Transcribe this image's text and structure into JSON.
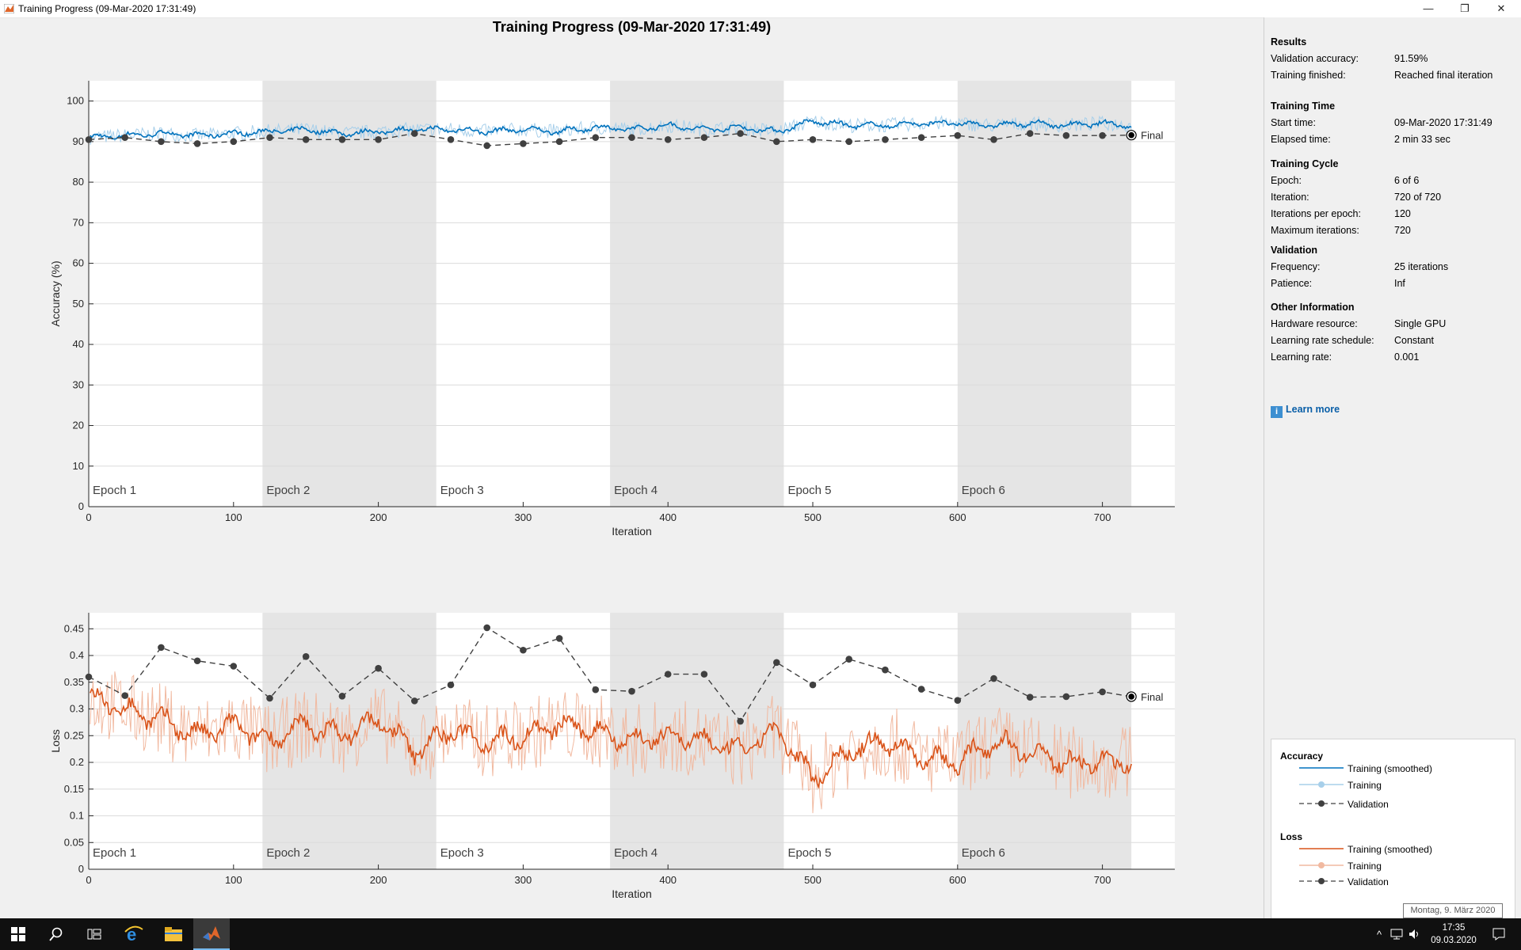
{
  "window": {
    "title": "Training Progress (09-Mar-2020 17:31:49)",
    "minimize": "—",
    "restore": "❐",
    "close": "✕"
  },
  "figure_title": "Training Progress (09-Mar-2020 17:31:49)",
  "colors": {
    "accuracy": "#0072bd",
    "accuracy_raw": "#a7cfea",
    "loss": "#d95319",
    "loss_raw": "#f1b9a0",
    "validation": "#404040",
    "epoch_shade": "#e5e5e5"
  },
  "epochs": [
    "Epoch 1",
    "Epoch 2",
    "Epoch 3",
    "Epoch 4",
    "Epoch 5",
    "Epoch 6"
  ],
  "final_label": "Final",
  "chart_data": [
    {
      "type": "line",
      "ylabel": "Accuracy (%)",
      "xlabel": "Iteration",
      "xlim": [
        0,
        750
      ],
      "ylim": [
        0,
        105
      ],
      "xticks": [
        0,
        100,
        200,
        300,
        400,
        500,
        600,
        700
      ],
      "yticks": [
        0,
        10,
        20,
        30,
        40,
        50,
        60,
        70,
        80,
        90,
        100
      ],
      "series": [
        {
          "name": "Training (smoothed)",
          "x": [
            0,
            25,
            50,
            75,
            100,
            125,
            150,
            175,
            200,
            225,
            250,
            275,
            300,
            325,
            350,
            375,
            400,
            425,
            450,
            475,
            500,
            525,
            550,
            575,
            600,
            625,
            650,
            675,
            700,
            720
          ],
          "values": [
            91,
            91.5,
            92,
            91.5,
            92,
            92.5,
            93,
            92,
            92.5,
            93,
            93,
            92.5,
            93,
            92.5,
            93.5,
            93,
            94,
            93,
            93.5,
            92.5,
            95,
            94,
            94,
            94.5,
            94.5,
            94,
            94.5,
            94,
            94.5,
            94
          ]
        },
        {
          "name": "Validation",
          "x": [
            0,
            25,
            50,
            75,
            100,
            125,
            150,
            175,
            200,
            225,
            250,
            275,
            300,
            325,
            350,
            375,
            400,
            425,
            450,
            475,
            500,
            525,
            550,
            575,
            600,
            625,
            650,
            675,
            700,
            720
          ],
          "values": [
            90.5,
            91,
            90,
            89.5,
            90,
            91,
            90.5,
            90.5,
            90.5,
            92,
            90.5,
            89,
            89.5,
            90,
            91,
            91,
            90.5,
            91,
            92,
            90,
            90.5,
            90,
            90.5,
            91,
            91.5,
            90.5,
            92,
            91.5,
            91.5,
            91.59
          ]
        }
      ]
    },
    {
      "type": "line",
      "ylabel": "Loss",
      "xlabel": "Iteration",
      "xlim": [
        0,
        750
      ],
      "ylim": [
        0,
        0.48
      ],
      "xticks": [
        0,
        100,
        200,
        300,
        400,
        500,
        600,
        700
      ],
      "yticks": [
        0,
        0.05,
        0.1,
        0.15,
        0.2,
        0.25,
        0.3,
        0.35,
        0.4,
        0.45
      ],
      "series": [
        {
          "name": "Training (smoothed)",
          "x": [
            0,
            25,
            50,
            75,
            100,
            125,
            150,
            175,
            200,
            225,
            250,
            275,
            300,
            325,
            350,
            375,
            400,
            425,
            450,
            475,
            500,
            525,
            550,
            575,
            600,
            625,
            650,
            675,
            700,
            720
          ],
          "values": [
            0.32,
            0.3,
            0.28,
            0.25,
            0.27,
            0.24,
            0.27,
            0.25,
            0.28,
            0.22,
            0.26,
            0.24,
            0.25,
            0.27,
            0.26,
            0.24,
            0.25,
            0.24,
            0.22,
            0.26,
            0.17,
            0.22,
            0.24,
            0.21,
            0.2,
            0.24,
            0.22,
            0.2,
            0.2,
            0.2
          ]
        },
        {
          "name": "Validation",
          "x": [
            0,
            25,
            50,
            75,
            100,
            125,
            150,
            175,
            200,
            225,
            250,
            275,
            300,
            325,
            350,
            375,
            400,
            425,
            450,
            475,
            500,
            525,
            550,
            575,
            600,
            625,
            650,
            675,
            700,
            720
          ],
          "values": [
            0.36,
            0.325,
            0.415,
            0.39,
            0.38,
            0.32,
            0.398,
            0.324,
            0.376,
            0.315,
            0.345,
            0.452,
            0.41,
            0.432,
            0.336,
            0.333,
            0.365,
            0.365,
            0.277,
            0.387,
            0.345,
            0.393,
            0.373,
            0.337,
            0.316,
            0.357,
            0.322,
            0.323,
            0.332,
            0.323
          ]
        }
      ]
    }
  ],
  "panel": {
    "results": {
      "title": "Results",
      "rows": [
        [
          "Validation accuracy:",
          "91.59%"
        ],
        [
          "Training finished:",
          "Reached final iteration"
        ]
      ]
    },
    "time": {
      "title": "Training Time",
      "rows": [
        [
          "Start time:",
          "09-Mar-2020 17:31:49"
        ],
        [
          "Elapsed time:",
          "2 min 33 sec"
        ]
      ]
    },
    "cycle": {
      "title": "Training Cycle",
      "rows": [
        [
          "Epoch:",
          "6 of 6"
        ],
        [
          "Iteration:",
          "720 of 720"
        ],
        [
          "Iterations per epoch:",
          "120"
        ],
        [
          "Maximum iterations:",
          "720"
        ]
      ]
    },
    "validation": {
      "title": "Validation",
      "rows": [
        [
          "Frequency:",
          "25 iterations"
        ],
        [
          "Patience:",
          "Inf"
        ]
      ]
    },
    "other": {
      "title": "Other Information",
      "rows": [
        [
          "Hardware resource:",
          "Single GPU"
        ],
        [
          "Learning rate schedule:",
          "Constant"
        ],
        [
          "Learning rate:",
          "0.001"
        ]
      ]
    },
    "learn_more": "Learn more"
  },
  "legend": {
    "accuracy_title": "Accuracy",
    "loss_title": "Loss",
    "smoothed": "Training (smoothed)",
    "training": "Training",
    "validation": "Validation"
  },
  "tooltip": "Montag, 9. März 2020",
  "taskbar": {
    "time": "17:35",
    "date": "09.03.2020"
  }
}
